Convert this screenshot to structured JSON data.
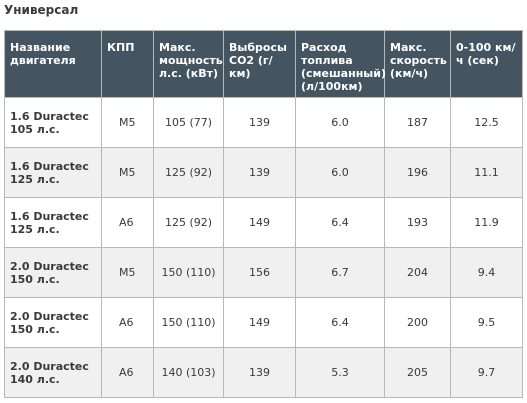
{
  "title": "Универсал",
  "table": {
    "headers": [
      "Название двигателя",
      "КПП",
      "Макс. мощность л.с. (кВт)",
      "Выбросы CO2 (г/км)",
      "Расход топлива (смешанный) (л/100км)",
      "Макс. скорость (км/ч)",
      "0-100 км/ч (сек)"
    ],
    "rows": [
      [
        "1.6 Duractec 105 л.с.",
        "M5",
        "105 (77)",
        "139",
        "6.0",
        "187",
        "12.5"
      ],
      [
        "1.6 Duractec 125 л.с.",
        "M5",
        "125 (92)",
        "139",
        "6.0",
        "196",
        "11.1"
      ],
      [
        "1.6 Duractec 125 л.с.",
        "A6",
        "125 (92)",
        "149",
        "6.4",
        "193",
        "11.9"
      ],
      [
        "2.0 Duractec 150 л.с.",
        "M5",
        "150 (110)",
        "156",
        "6.7",
        "204",
        "9.4"
      ],
      [
        "2.0 Duractec 150 л.с.",
        "A6",
        "150 (110)",
        "149",
        "6.4",
        "200",
        "9.5"
      ],
      [
        "2.0 Duractec 140 л.с.",
        "A6",
        "140 (103)",
        "139",
        "5.3",
        "205",
        "9.7"
      ]
    ]
  },
  "colors": {
    "header_bg": "#445461",
    "header_text": "#ffffff",
    "row_alt_bg": "#f0f0f0",
    "border": "#b8b8b8"
  }
}
